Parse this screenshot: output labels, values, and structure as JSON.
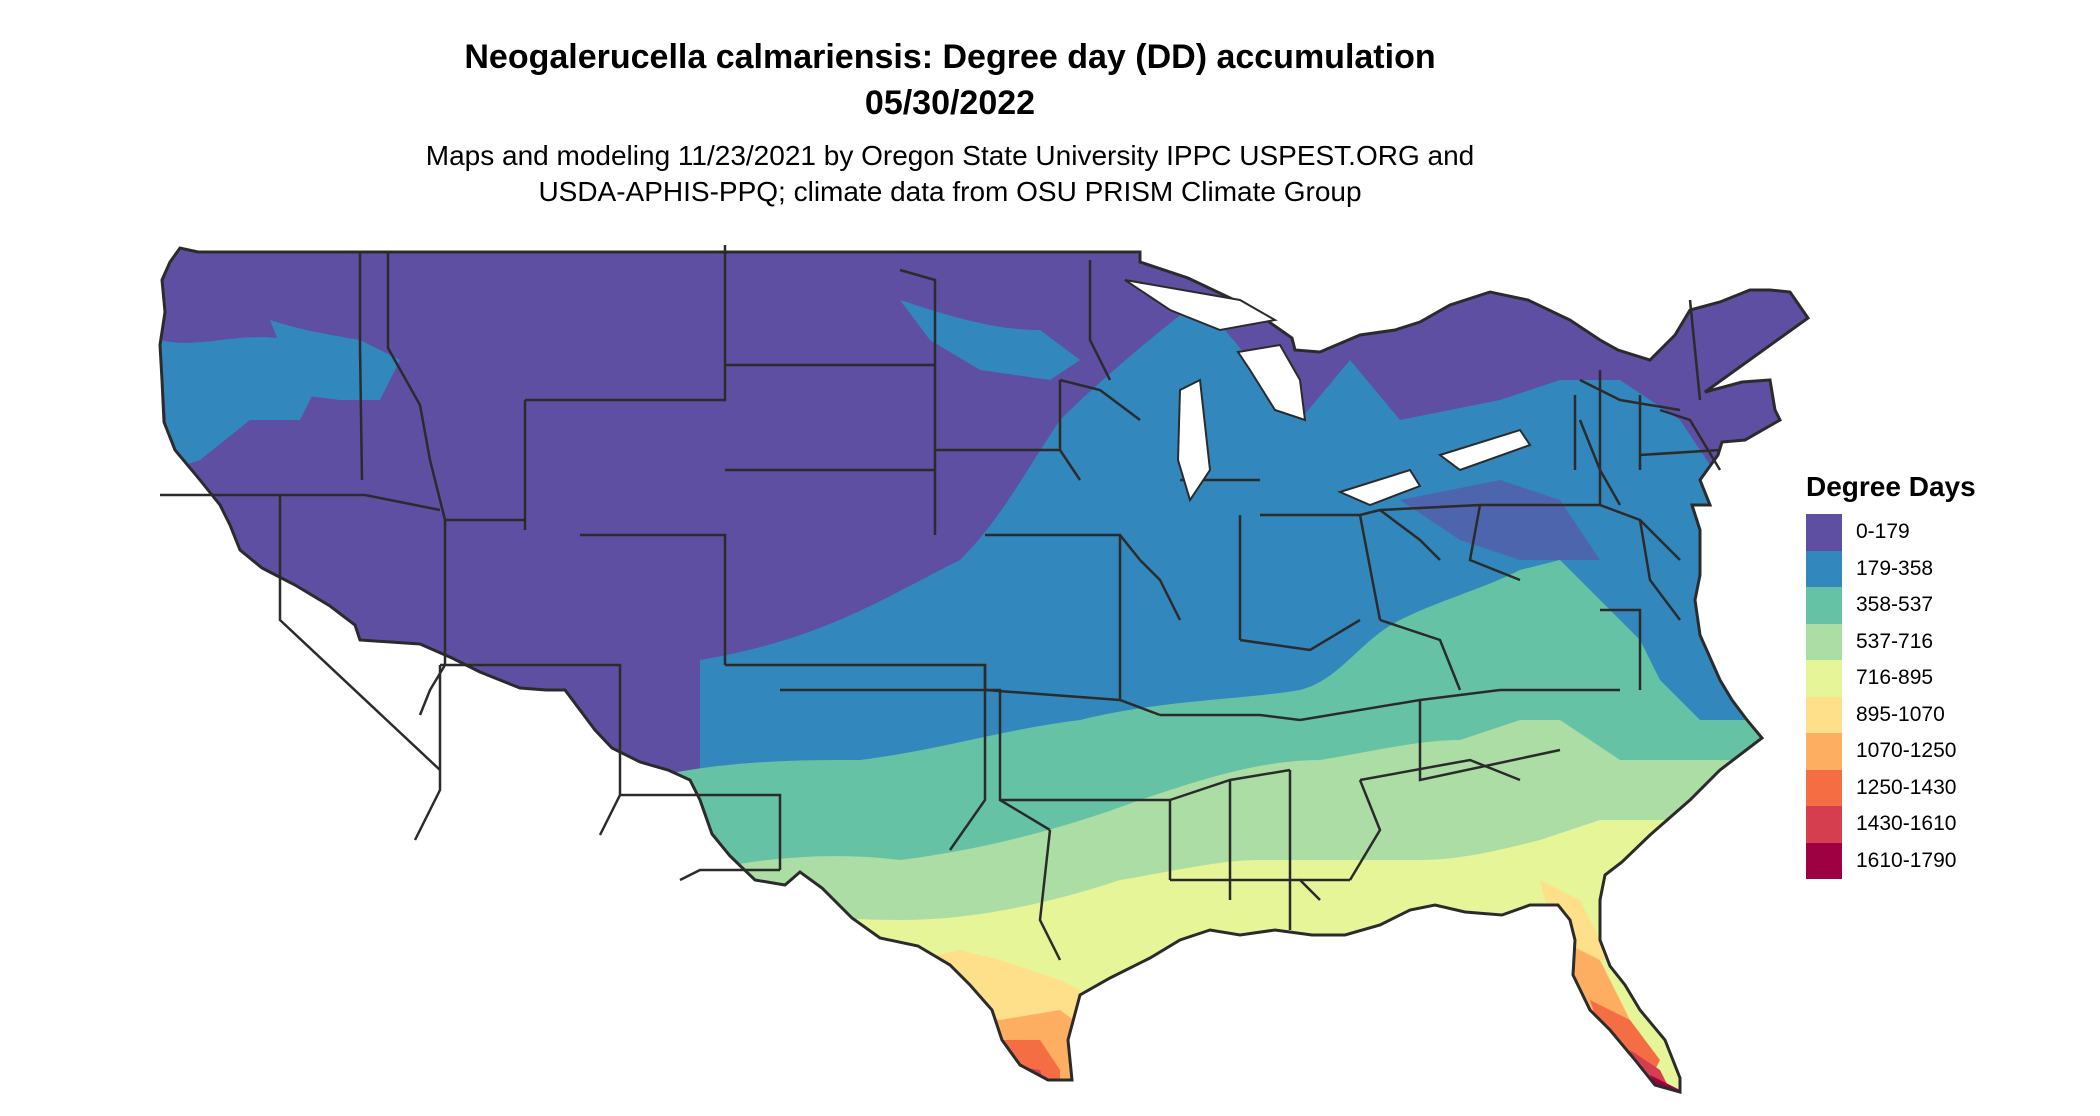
{
  "title_line1": "Neogalerucella calmariensis: Degree day (DD) accumulation",
  "title_line2": "05/30/2022",
  "subtitle_line1": "Maps and modeling 11/23/2021 by Oregon State University IPPC USPEST.ORG and",
  "subtitle_line2": "USDA-APHIS-PPQ; climate data from OSU PRISM Climate Group",
  "legend": {
    "title": "Degree Days",
    "items": [
      {
        "label": "0-179",
        "color": "#5e4fa2"
      },
      {
        "label": "179-358",
        "color": "#3288bd"
      },
      {
        "label": "358-537",
        "color": "#66c2a5"
      },
      {
        "label": "537-716",
        "color": "#abdda4"
      },
      {
        "label": "716-895",
        "color": "#e6f598"
      },
      {
        "label": "895-1070",
        "color": "#fee08b"
      },
      {
        "label": "1070-1250",
        "color": "#fdae61"
      },
      {
        "label": "1250-1430",
        "color": "#f46d43"
      },
      {
        "label": "1430-1610",
        "color": "#d53e4f"
      },
      {
        "label": "1610-1790",
        "color": "#9e0142"
      }
    ]
  },
  "map": {
    "region": "Contiguous United States",
    "boundary_color": "#2b2b2b"
  }
}
